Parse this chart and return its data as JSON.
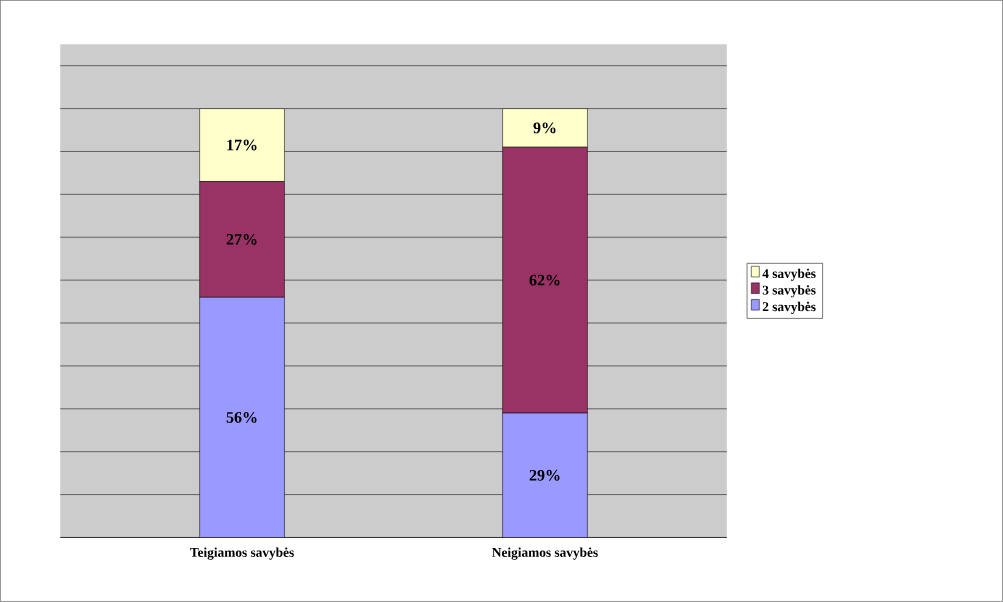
{
  "chart_data": {
    "type": "bar",
    "stacked": true,
    "categories": [
      "Teigiamos savybės",
      "Neigiamos savybės"
    ],
    "series": [
      {
        "name": "2 savybės",
        "color": "#9999ff",
        "values": [
          56,
          29
        ],
        "value_labels": [
          "56%",
          "29%"
        ]
      },
      {
        "name": "3 savybės",
        "color": "#993366",
        "values": [
          27,
          62
        ],
        "value_labels": [
          "27%",
          "62%"
        ]
      },
      {
        "name": "4 savybės",
        "color": "#ffffcc",
        "values": [
          17,
          9
        ],
        "value_labels": [
          "17%",
          "9%"
        ]
      }
    ],
    "grid": "y",
    "legend": "right",
    "tick_labels": "x"
  }
}
